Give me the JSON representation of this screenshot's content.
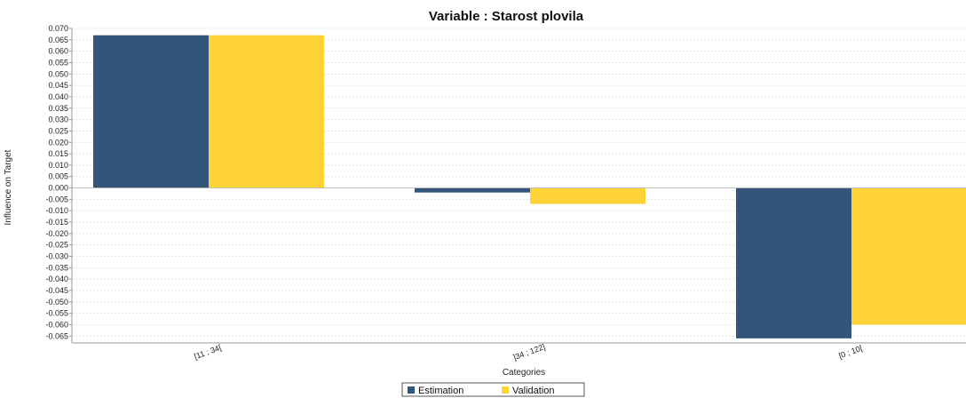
{
  "chart_data": {
    "type": "bar",
    "title": "Variable : Starost plovila",
    "xlabel": "Categories",
    "ylabel": "Influence on Target",
    "categories": [
      "[11 ; 34[",
      "]34 ; 122]",
      "[0 ; 10["
    ],
    "series": [
      {
        "name": "Estimation",
        "color": "#34557a",
        "values": [
          0.067,
          -0.002,
          -0.066
        ]
      },
      {
        "name": "Validation",
        "color": "#fdd338",
        "values": [
          0.067,
          -0.007,
          -0.06
        ]
      }
    ],
    "ylim": [
      -0.068,
      0.07
    ],
    "yticks": [
      "0.070",
      "0.065",
      "0.060",
      "0.055",
      "0.050",
      "0.045",
      "0.040",
      "0.035",
      "0.030",
      "0.025",
      "0.020",
      "0.015",
      "0.010",
      "0.005",
      "0.000",
      "-0.005",
      "-0.010",
      "-0.015",
      "-0.020",
      "-0.025",
      "-0.030",
      "-0.035",
      "-0.040",
      "-0.045",
      "-0.050",
      "-0.055",
      "-0.060",
      "-0.065"
    ],
    "grid": true,
    "legend_position": "bottom-center"
  }
}
